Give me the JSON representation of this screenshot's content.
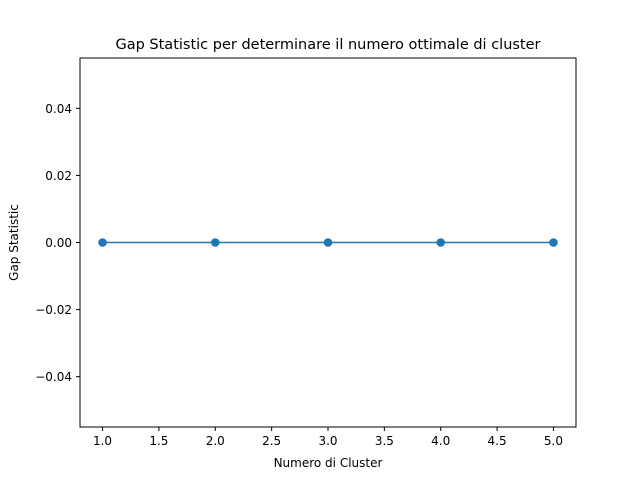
{
  "chart_data": {
    "type": "line",
    "title": "Gap Statistic per determinare il numero ottimale di cluster",
    "xlabel": "Numero di Cluster",
    "ylabel": "Gap Statistic",
    "x": [
      1,
      2,
      3,
      4,
      5
    ],
    "series": [
      {
        "values": [
          0,
          0,
          0,
          0,
          0
        ],
        "color": "#1f77b4",
        "marker": "circle"
      }
    ],
    "xlim": [
      0.8,
      5.2
    ],
    "ylim": [
      -0.055,
      0.055
    ],
    "xticks": [
      1.0,
      1.5,
      2.0,
      2.5,
      3.0,
      3.5,
      4.0,
      4.5,
      5.0
    ],
    "xtick_labels": [
      "1.0",
      "1.5",
      "2.0",
      "2.5",
      "3.0",
      "3.5",
      "4.0",
      "4.5",
      "5.0"
    ],
    "yticks": [
      -0.04,
      -0.02,
      0.0,
      0.02,
      0.04
    ],
    "ytick_labels": [
      "−0.04",
      "−0.02",
      "0.00",
      "0.02",
      "0.04"
    ],
    "grid": false,
    "legend": "none"
  }
}
